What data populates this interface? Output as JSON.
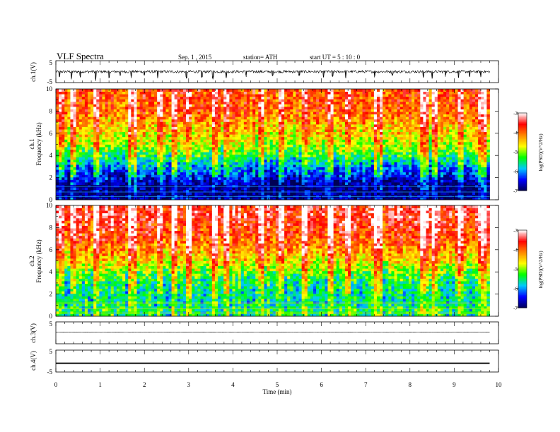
{
  "header": {
    "title": "VLF  Spectra",
    "date": "Sep. 1  , 2015",
    "station": "station= ATH",
    "start": "start  UT  =   5  : 10 : 0"
  },
  "chart_data": [
    {
      "type": "line",
      "panel": "ch1-waveform",
      "ylabel": "ch.1(V)",
      "y_ticks": [
        "5",
        "-5"
      ],
      "ylim": [
        -5,
        5
      ],
      "xlim": [
        0,
        10
      ],
      "baseline": 0.0,
      "noise_amplitude": 0.6,
      "spikes": [
        [
          0.08,
          -2.5
        ],
        [
          0.35,
          -3.5
        ],
        [
          0.55,
          -2.6
        ],
        [
          0.9,
          -4.2
        ],
        [
          1.2,
          -2.8
        ],
        [
          1.45,
          -1.8
        ],
        [
          1.7,
          -2.9
        ],
        [
          2.0,
          -1.7
        ],
        [
          2.3,
          -3.0
        ],
        [
          2.95,
          -3.0
        ],
        [
          3.3,
          -2.6
        ],
        [
          3.55,
          -3.5
        ],
        [
          3.85,
          -2.9
        ],
        [
          4.3,
          -2.4
        ],
        [
          4.9,
          -2.0
        ],
        [
          5.5,
          -1.9
        ],
        [
          6.05,
          -2.6
        ],
        [
          6.25,
          -2.3
        ],
        [
          6.55,
          -3.0
        ],
        [
          7.2,
          -2.6
        ],
        [
          7.6,
          -1.8
        ],
        [
          8.3,
          -2.6
        ],
        [
          8.5,
          -3.2
        ],
        [
          8.8,
          -2.3
        ],
        [
          9.1,
          -2.8
        ],
        [
          9.35,
          -2.4
        ],
        [
          9.6,
          -2.5
        ]
      ]
    },
    {
      "type": "heatmap",
      "panel": "ch1-spectrogram",
      "ylabel_top": "ch.1",
      "ylabel": "Frequency  (kHz)",
      "y_ticks": [
        "0",
        "2",
        "4",
        "6",
        "8",
        "10"
      ],
      "ylim": [
        0,
        10
      ],
      "xlim": [
        0,
        10
      ],
      "data_end_min": 9.8,
      "colorbar": {
        "label": "log(PSD)(V^2/Hz)",
        "min": -7,
        "max": -3,
        "ticks": [
          "-3",
          "-4",
          "-5",
          "-6",
          "-7"
        ],
        "colors": [
          "#000055",
          "#0000ff",
          "#00c8ff",
          "#00ff00",
          "#ffff00",
          "#ff8800",
          "#ff0000",
          "#ffffff"
        ]
      },
      "background_level_profile": {
        "freq_khz": [
          0,
          0.4,
          1.2,
          2,
          3,
          4,
          5,
          6,
          7,
          8,
          9,
          10
        ],
        "log_psd": [
          -6.7,
          -6.9,
          -6.9,
          -6.5,
          -6.0,
          -5.4,
          -4.9,
          -4.6,
          -4.3,
          -4.0,
          -3.9,
          -3.9
        ]
      },
      "bright_columns_min": [
        0.08,
        0.35,
        0.9,
        1.7,
        2.3,
        2.62,
        2.95,
        3.55,
        3.85,
        4.6,
        5.05,
        5.6,
        6.15,
        6.55,
        7.25,
        8.3,
        8.55,
        9.1,
        9.6
      ]
    },
    {
      "type": "heatmap",
      "panel": "ch2-spectrogram",
      "ylabel_top": "ch.2",
      "ylabel": "Frequency  (kHz)",
      "y_ticks": [
        "0",
        "2",
        "4",
        "6",
        "8",
        "10"
      ],
      "ylim": [
        0,
        10
      ],
      "xlim": [
        0,
        10
      ],
      "data_end_min": 9.8,
      "colorbar": {
        "label": "log(PSD)(V^2/Hz)",
        "min": -7,
        "max": -3,
        "ticks": [
          "-3",
          "-4",
          "-5",
          "-6",
          "-7"
        ],
        "colors": [
          "#000055",
          "#0000ff",
          "#00c8ff",
          "#00ff00",
          "#ffff00",
          "#ff8800",
          "#ff0000",
          "#ffffff"
        ]
      },
      "background_level_profile": {
        "freq_khz": [
          0,
          0.4,
          1.2,
          2,
          3,
          4,
          5,
          6,
          7,
          8,
          9,
          10
        ],
        "log_psd": [
          -5.5,
          -5.4,
          -5.6,
          -5.6,
          -5.5,
          -5.1,
          -4.6,
          -4.2,
          -3.9,
          -3.7,
          -3.5,
          -3.5
        ]
      },
      "bright_columns_min": [
        0.08,
        0.35,
        0.9,
        1.7,
        2.3,
        2.62,
        2.95,
        3.55,
        3.85,
        4.6,
        5.05,
        5.6,
        6.15,
        6.55,
        7.25,
        8.3,
        8.55,
        9.1,
        9.6
      ]
    },
    {
      "type": "line",
      "panel": "ch3-waveform",
      "ylabel": "ch.3(V)",
      "y_ticks": [
        "5"
      ],
      "ylim": [
        -5,
        5
      ],
      "xlim": [
        0,
        10
      ],
      "baseline": 0.3,
      "noise_amplitude": 0.08
    },
    {
      "type": "line",
      "panel": "ch4-waveform",
      "ylabel": "ch.4(V)",
      "y_ticks": [
        "5",
        "-5"
      ],
      "ylim": [
        -5,
        5
      ],
      "xlim": [
        0,
        10
      ],
      "baseline": -1.0,
      "line_thickness_v": 0.6
    }
  ],
  "x_axis": {
    "label": "Time  (min)",
    "ticks": [
      "0",
      "1",
      "2",
      "3",
      "4",
      "5",
      "6",
      "7",
      "8",
      "9",
      "10"
    ]
  }
}
